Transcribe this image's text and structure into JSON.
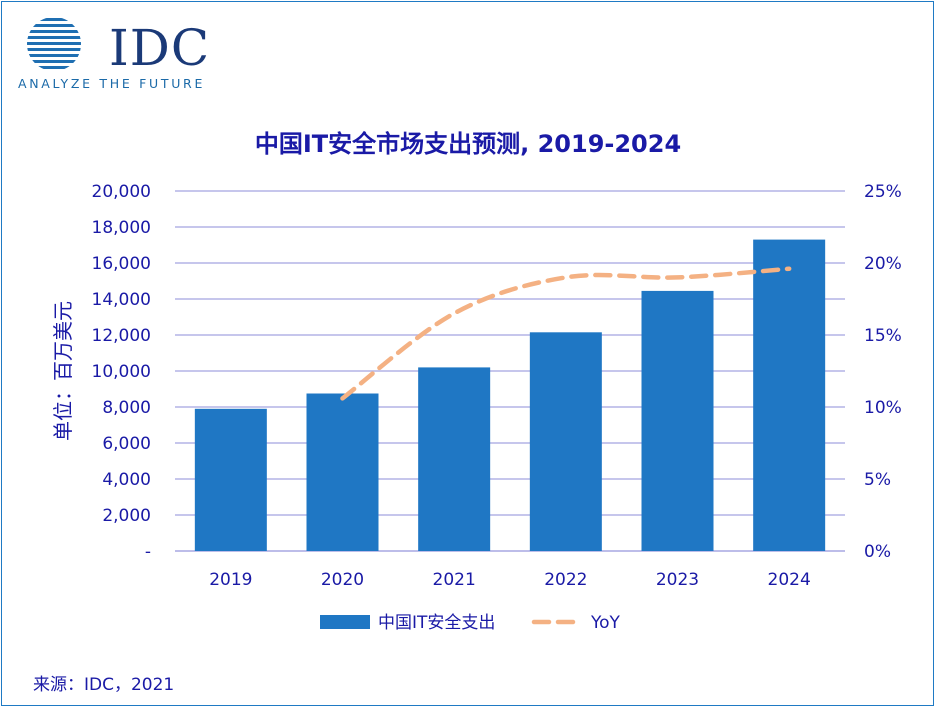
{
  "brand": {
    "name": "IDC",
    "tagline": "ANALYZE THE FUTURE"
  },
  "source": "来源：IDC，2021",
  "colors": {
    "bar": "#1f77c4",
    "line": "#f4b183",
    "title": "#1a1aa6",
    "axis_text": "#1a1aa6",
    "grid": "#b4b4e6",
    "border": "#1f7ac4"
  },
  "chart_data": {
    "type": "bar",
    "title": "中国IT安全市场支出预测, 2019-2024",
    "ylabel": "单位：百万美元",
    "categories": [
      "2019",
      "2020",
      "2021",
      "2022",
      "2023",
      "2024"
    ],
    "series": [
      {
        "name": "中国IT安全支出",
        "type": "bar",
        "axis": "left",
        "values": [
          7900,
          8750,
          10200,
          12150,
          14450,
          17300
        ]
      },
      {
        "name": "YoY",
        "type": "line",
        "style": "dashed",
        "axis": "right",
        "values": [
          null,
          10.6,
          16.5,
          19.0,
          19.0,
          19.6
        ]
      }
    ],
    "ylim_left": [
      0,
      20000
    ],
    "ylim_right": [
      0,
      25
    ],
    "left_ticks": [
      "-",
      "2,000",
      "4,000",
      "6,000",
      "8,000",
      "10,000",
      "12,000",
      "14,000",
      "16,000",
      "18,000",
      "20,000"
    ],
    "right_ticks": [
      "0%",
      "5%",
      "10%",
      "15%",
      "20%",
      "25%"
    ],
    "grid": true,
    "legend_position": "bottom"
  }
}
